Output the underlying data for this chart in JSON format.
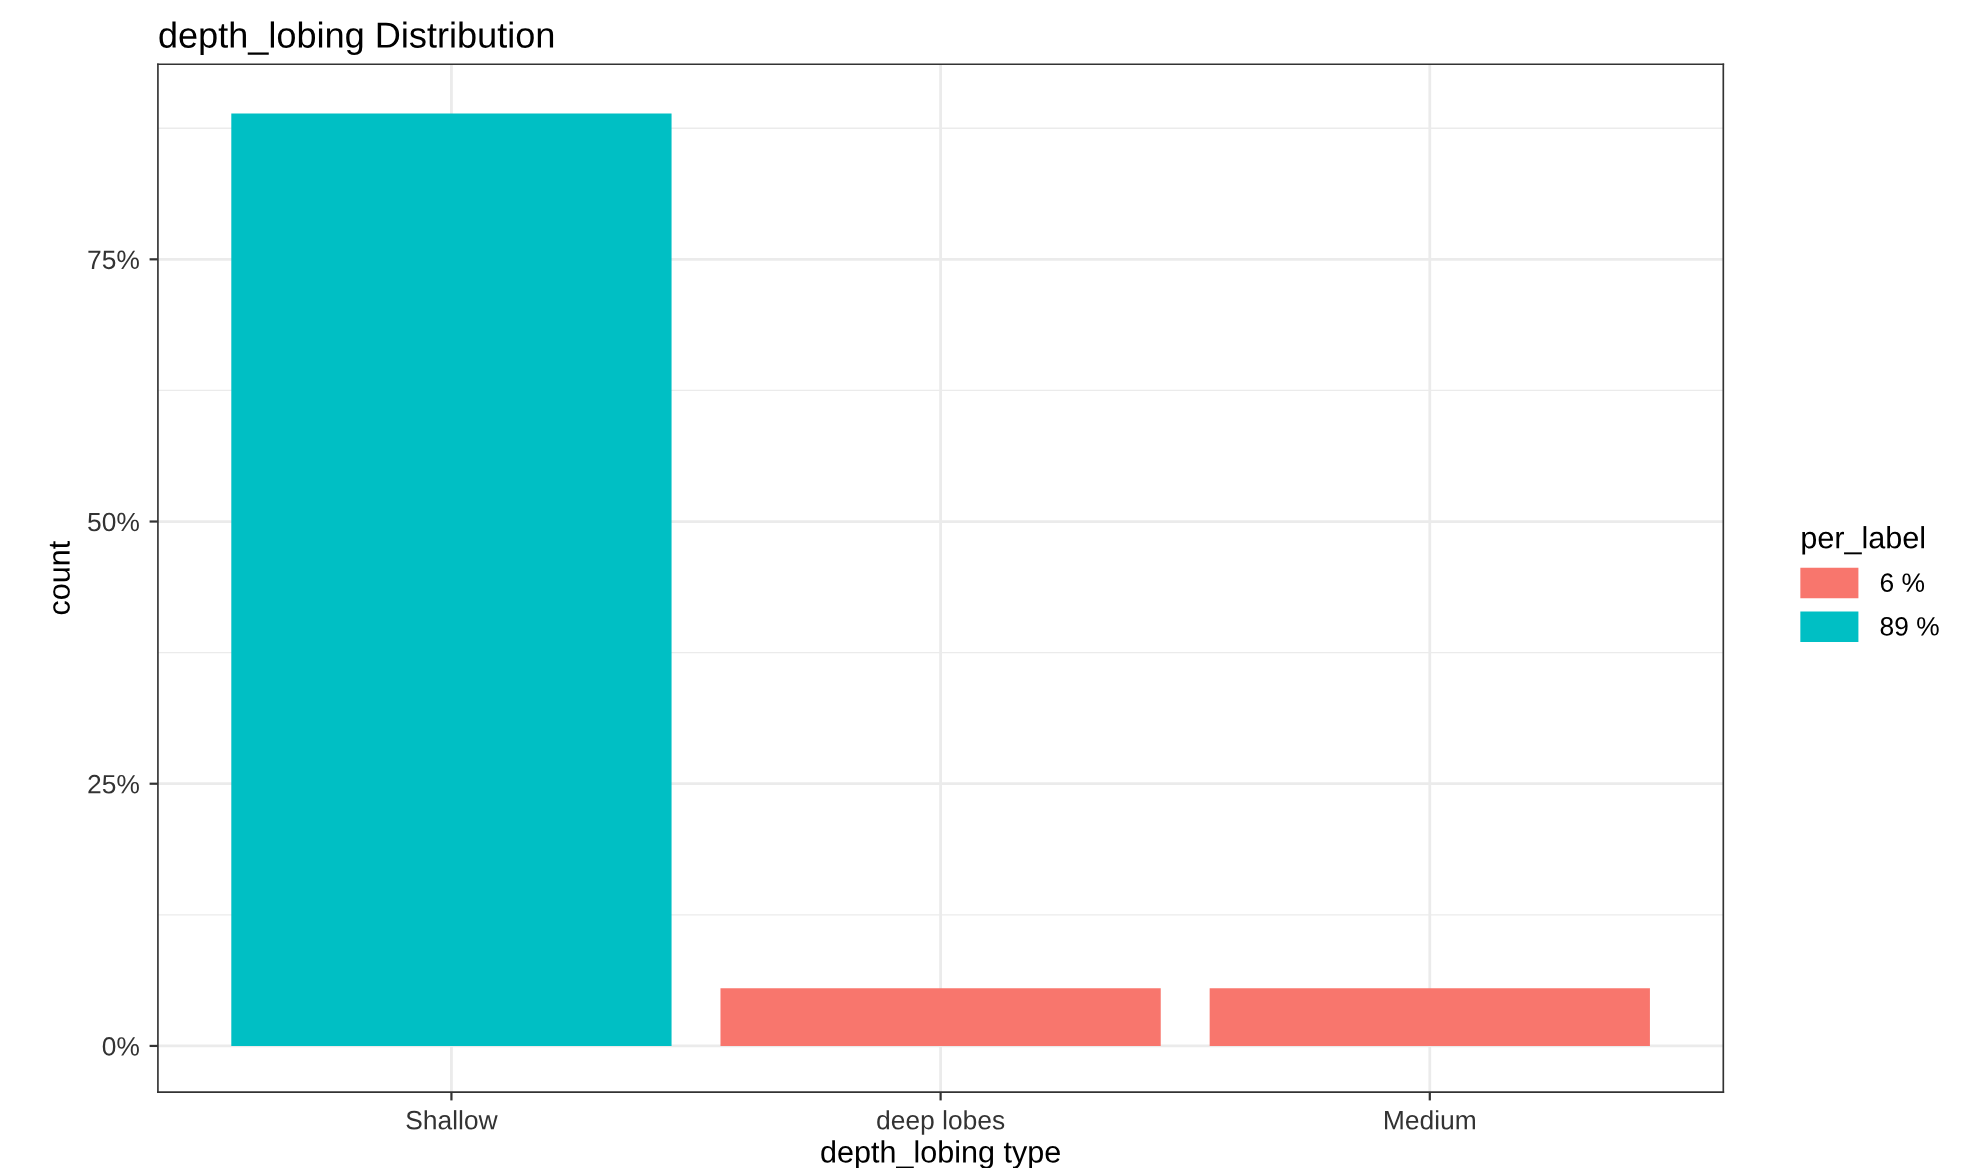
{
  "chart_data": {
    "type": "bar",
    "title": "depth_lobing Distribution",
    "xlabel": "depth_lobing type",
    "ylabel": "count",
    "legend_title": "per_label",
    "categories": [
      "Shallow",
      "deep lobes",
      "Medium"
    ],
    "series": [
      {
        "name": "6 %",
        "color": "#f8766d",
        "values": [
          null,
          5.5,
          5.5
        ]
      },
      {
        "name": "89 %",
        "color": "#00bfc4",
        "values": [
          88.9,
          null,
          null
        ]
      }
    ],
    "ylim": [
      -4.4,
      93.6
    ],
    "yticks": [
      {
        "value": 0,
        "label": "0%"
      },
      {
        "value": 25,
        "label": "25%"
      },
      {
        "value": 50,
        "label": "50%"
      },
      {
        "value": 75,
        "label": "75%"
      }
    ],
    "grid": true,
    "legend": "right"
  }
}
